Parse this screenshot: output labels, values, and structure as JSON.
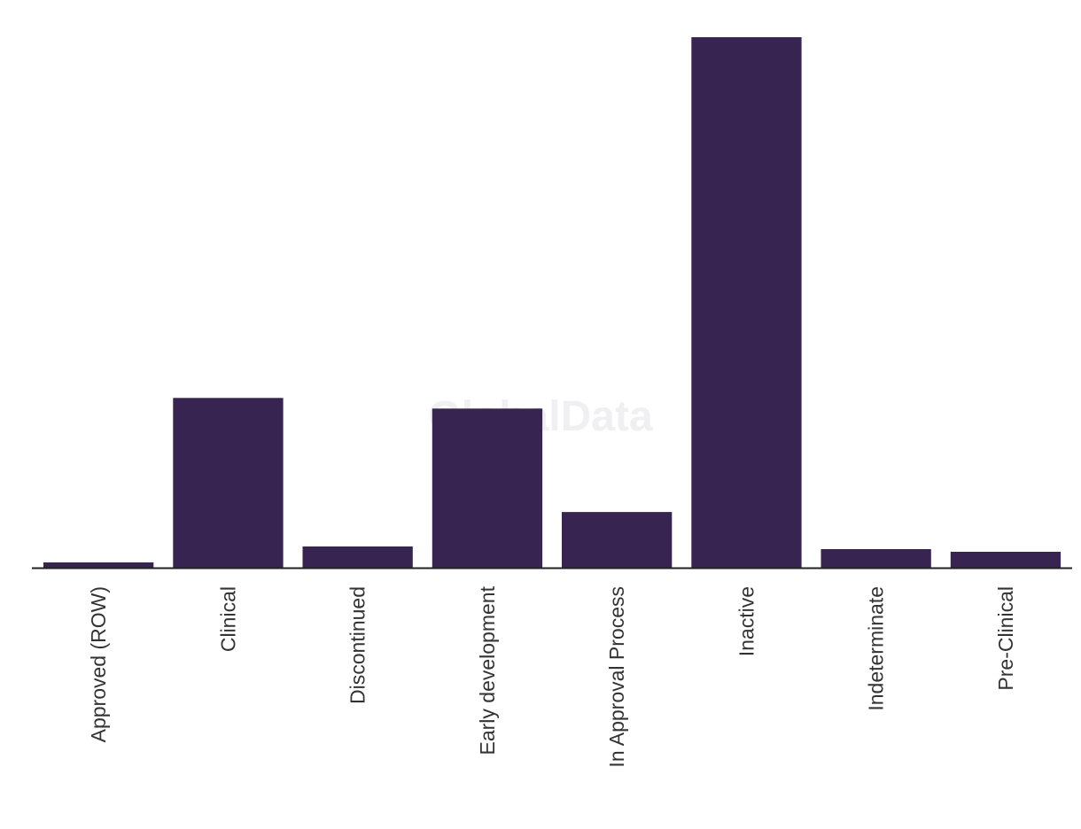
{
  "watermark": "GlobalData",
  "colors": {
    "bar": "#372451",
    "axis": "#222222",
    "label": "#333333"
  },
  "chart_data": {
    "type": "bar",
    "categories": [
      "Approved (ROW)",
      "Clinical",
      "Discontinued",
      "Early development",
      "In Approval Process",
      "Inactive",
      "Indeterminate",
      "Pre-Clinical"
    ],
    "values": [
      1,
      32,
      4,
      30,
      10.5,
      100,
      3.5,
      3
    ],
    "title": "",
    "xlabel": "",
    "ylabel": "",
    "ylim": [
      0,
      100
    ],
    "grid": false,
    "legend": "none"
  }
}
